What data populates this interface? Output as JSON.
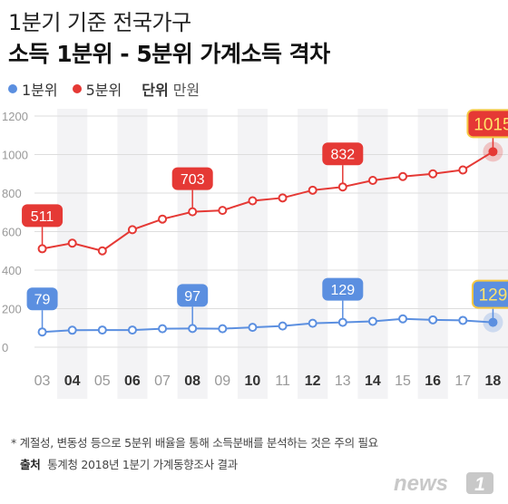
{
  "title": {
    "line1": "1분기 기준 전국가구",
    "line2": "소득 1분위 - 5분위 가계소득 격차"
  },
  "legend": {
    "series1": "1분위",
    "series2": "5분위",
    "unit_label": "단위",
    "unit_value": "만원"
  },
  "footer": {
    "note": "* 계절성, 변동성 등으로 5분위 배율을 통해 소득분배를 분석하는 것은 주의 필요",
    "source_label": "출처",
    "source_text": "통계청 2018년 1분기 가계동향조사 결과"
  },
  "logo": {
    "text": "news",
    "mark": "1"
  },
  "colors": {
    "series1": "#5b8fe0",
    "series2": "#e53935",
    "axis_text": "#999999"
  },
  "chart_data": {
    "type": "line",
    "categories": [
      "03",
      "04",
      "05",
      "06",
      "07",
      "08",
      "09",
      "10",
      "11",
      "12",
      "13",
      "14",
      "15",
      "16",
      "17",
      "18"
    ],
    "bold_categories": [
      "04",
      "06",
      "08",
      "10",
      "12",
      "14",
      "16",
      "18"
    ],
    "ylim": [
      0,
      1200
    ],
    "yticks": [
      0,
      200,
      400,
      600,
      800,
      1000,
      1200
    ],
    "grid": true,
    "legend": "top-left",
    "series": [
      {
        "name": "1분위",
        "color": "#5b8fe0",
        "values": [
          79,
          88,
          89,
          89,
          96,
          97,
          96,
          103,
          110,
          124,
          129,
          134,
          147,
          142,
          139,
          129
        ],
        "labeled_indices": [
          0,
          5,
          10,
          15
        ],
        "labels": [
          "79",
          "97",
          "129",
          "129"
        ]
      },
      {
        "name": "5분위",
        "color": "#e53935",
        "values": [
          511,
          540,
          500,
          610,
          665,
          703,
          710,
          760,
          775,
          815,
          832,
          866,
          886,
          900,
          920,
          1015
        ],
        "labeled_indices": [
          0,
          5,
          10,
          15
        ],
        "labels": [
          "511",
          "703",
          "832",
          "1015"
        ]
      }
    ]
  }
}
